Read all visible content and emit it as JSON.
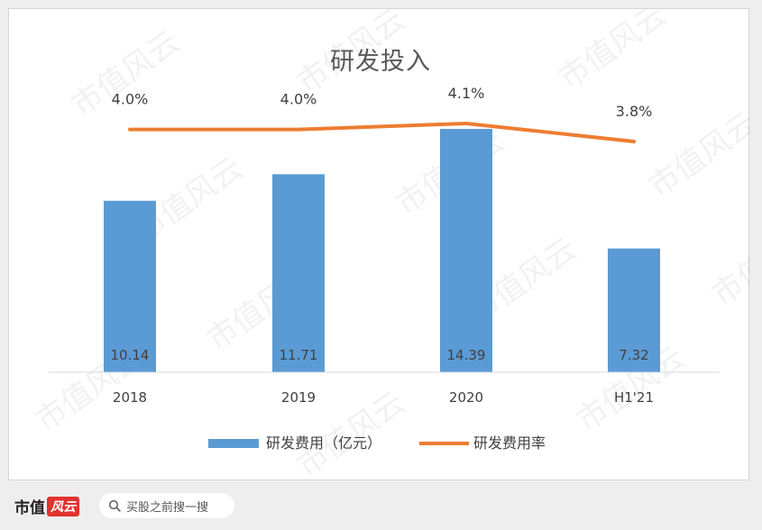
{
  "chart_data": {
    "type": "bar",
    "title": "研发投入",
    "categories": [
      "2018",
      "2019",
      "2020",
      "H1'21"
    ],
    "series": [
      {
        "name": "研发费用（亿元）",
        "type": "bar",
        "values": [
          10.14,
          11.71,
          14.39,
          7.32
        ],
        "labels": [
          "10.14",
          "11.71",
          "14.39",
          "7.32"
        ]
      },
      {
        "name": "研发费用率",
        "type": "line",
        "values": [
          4.0,
          4.0,
          4.1,
          3.8
        ],
        "labels": [
          "4.0%",
          "4.0%",
          "4.1%",
          "3.8%"
        ]
      }
    ],
    "legend_position": "bottom",
    "grid": false
  },
  "colors": {
    "bar": "#5b9bd5",
    "line": "#ed7d31"
  },
  "footer": {
    "brand_name": "市值",
    "brand_badge": "风云",
    "search_placeholder": "买股之前搜一搜",
    "search_icon": "search-icon"
  },
  "watermark": "市值风云"
}
